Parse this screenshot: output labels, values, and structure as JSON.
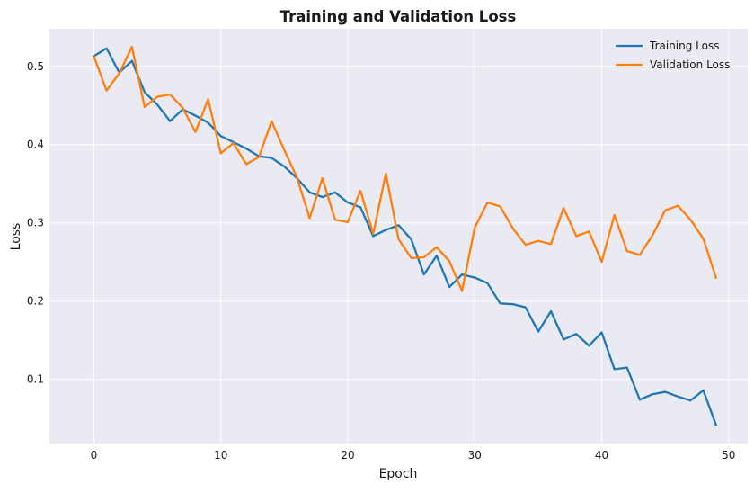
{
  "chart_data": {
    "type": "line",
    "title": "Training and Validation Loss",
    "xlabel": "Epoch",
    "ylabel": "Loss",
    "xlim": [
      -3.5,
      51.5
    ],
    "ylim": [
      0.018,
      0.548
    ],
    "xticks": [
      0,
      10,
      20,
      30,
      40,
      50
    ],
    "yticks": [
      0.1,
      0.2,
      0.3,
      0.4,
      0.5
    ],
    "grid": true,
    "legend_position": "top-right",
    "x": [
      0,
      1,
      2,
      3,
      4,
      5,
      6,
      7,
      8,
      9,
      10,
      11,
      12,
      13,
      14,
      15,
      16,
      17,
      18,
      19,
      20,
      21,
      22,
      23,
      24,
      25,
      26,
      27,
      28,
      29,
      30,
      31,
      32,
      33,
      34,
      35,
      36,
      37,
      38,
      39,
      40,
      41,
      42,
      43,
      44,
      45,
      46,
      47,
      48,
      49
    ],
    "series": [
      {
        "name": "Training Loss",
        "color": "#1f77b4",
        "values": [
          0.513,
          0.523,
          0.492,
          0.507,
          0.467,
          0.451,
          0.43,
          0.445,
          0.437,
          0.428,
          0.411,
          0.403,
          0.395,
          0.385,
          0.383,
          0.372,
          0.357,
          0.339,
          0.333,
          0.339,
          0.326,
          0.32,
          0.283,
          0.291,
          0.297,
          0.279,
          0.234,
          0.258,
          0.218,
          0.234,
          0.23,
          0.223,
          0.197,
          0.196,
          0.192,
          0.161,
          0.187,
          0.151,
          0.158,
          0.143,
          0.16,
          0.113,
          0.115,
          0.074,
          0.081,
          0.084,
          0.078,
          0.073,
          0.086,
          0.042
        ]
      },
      {
        "name": "Validation Loss",
        "color": "#ff7f0e",
        "values": [
          0.513,
          0.469,
          0.491,
          0.525,
          0.448,
          0.461,
          0.464,
          0.447,
          0.416,
          0.458,
          0.389,
          0.402,
          0.375,
          0.384,
          0.43,
          0.393,
          0.358,
          0.306,
          0.357,
          0.304,
          0.301,
          0.341,
          0.286,
          0.363,
          0.279,
          0.255,
          0.256,
          0.269,
          0.251,
          0.213,
          0.294,
          0.326,
          0.321,
          0.293,
          0.272,
          0.277,
          0.273,
          0.319,
          0.283,
          0.289,
          0.25,
          0.31,
          0.264,
          0.259,
          0.284,
          0.316,
          0.322,
          0.304,
          0.28,
          0.23
        ]
      }
    ]
  }
}
